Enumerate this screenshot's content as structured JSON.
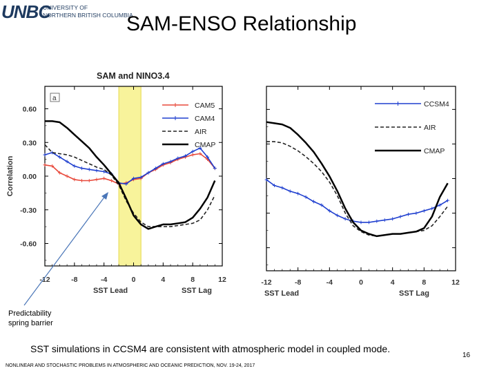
{
  "header": {
    "logo_mark": "UNBC",
    "logo_line1": "UNIVERSITY OF",
    "logo_line2": "NORTHERN BRITISH COLUMBIA",
    "slide_title": "SAM-ENSO Relationship"
  },
  "annotation": {
    "line1": "Predictability",
    "line2": "spring barrier"
  },
  "caption": "SST simulations in CCSM4 are consistent with atmospheric model in coupled mode.",
  "footer": "NONLINEAR AND STOCHASTIC PROBLEMS IN ATMOSPHERIC AND OCEANIC PREDICTION, NOV. 19-24, 2017",
  "page_number": "16",
  "chart_data": [
    {
      "type": "line",
      "title": "SAM and NINO3.4",
      "panel_label": "a",
      "ylabel": "Correlation",
      "xlabel_left": "SST Lead",
      "xlabel_right": "SST Lag",
      "xlim": [
        -12,
        12
      ],
      "ylim": [
        -0.8,
        0.8
      ],
      "xticks": [
        -12,
        -8,
        -4,
        0,
        4,
        8,
        12
      ],
      "xtick_labels": [
        "-12",
        "-8",
        "-4",
        "0",
        "4",
        "8",
        "12"
      ],
      "yticks": [
        0.6,
        0.3,
        0.0,
        -0.3,
        -0.6
      ],
      "ytick_labels": [
        "0.60",
        "0.30",
        "0.00",
        "-0.30",
        "-0.60"
      ],
      "highlight_band": [
        -2,
        1
      ],
      "legend_position": "top-right",
      "series": [
        {
          "name": "CAM5",
          "color": "#e8483a",
          "style": "solid",
          "marker": "plus",
          "x": [
            -12,
            -11,
            -10,
            -9,
            -8,
            -7,
            -6,
            -5,
            -4,
            -3,
            -2,
            -1,
            0,
            1,
            2,
            3,
            4,
            5,
            6,
            7,
            8,
            9,
            10,
            11
          ],
          "y": [
            0.1,
            0.09,
            0.03,
            0.0,
            -0.03,
            -0.04,
            -0.04,
            -0.03,
            -0.02,
            -0.04,
            -0.07,
            -0.06,
            -0.03,
            -0.02,
            0.03,
            0.06,
            0.1,
            0.12,
            0.15,
            0.17,
            0.19,
            0.2,
            0.15,
            0.07
          ]
        },
        {
          "name": "CAM4",
          "color": "#1f3fcf",
          "style": "solid",
          "marker": "plus",
          "x": [
            -12,
            -11,
            -10,
            -9,
            -8,
            -7,
            -6,
            -5,
            -4,
            -3,
            -2,
            -1,
            0,
            1,
            2,
            3,
            4,
            5,
            6,
            7,
            8,
            9,
            10,
            11
          ],
          "y": [
            0.19,
            0.21,
            0.17,
            0.13,
            0.09,
            0.07,
            0.06,
            0.05,
            0.04,
            0.02,
            -0.06,
            -0.07,
            -0.02,
            -0.01,
            0.03,
            0.07,
            0.11,
            0.13,
            0.16,
            0.18,
            0.22,
            0.25,
            0.17,
            0.07
          ]
        },
        {
          "name": "AIR",
          "color": "#222222",
          "style": "dashed",
          "marker": "none",
          "x": [
            -12,
            -11,
            -10,
            -9,
            -8,
            -7,
            -6,
            -5,
            -4,
            -3,
            -2,
            -1,
            0,
            1,
            2,
            3,
            4,
            5,
            6,
            7,
            8,
            9,
            10,
            11
          ],
          "y": [
            0.28,
            0.21,
            0.2,
            0.19,
            0.17,
            0.14,
            0.11,
            0.08,
            0.06,
            0.01,
            -0.08,
            -0.22,
            -0.33,
            -0.41,
            -0.45,
            -0.45,
            -0.45,
            -0.45,
            -0.44,
            -0.43,
            -0.42,
            -0.39,
            -0.3,
            -0.17
          ]
        },
        {
          "name": "CMAP",
          "color": "#000000",
          "style": "solid",
          "marker": "none",
          "width": 2.5,
          "x": [
            -12,
            -11,
            -10,
            -9,
            -8,
            -7,
            -6,
            -5,
            -4,
            -3,
            -2,
            -1,
            0,
            1,
            2,
            3,
            4,
            5,
            6,
            7,
            8,
            9,
            10,
            11
          ],
          "y": [
            0.49,
            0.49,
            0.48,
            0.43,
            0.37,
            0.31,
            0.25,
            0.17,
            0.1,
            0.02,
            -0.06,
            -0.2,
            -0.35,
            -0.43,
            -0.47,
            -0.45,
            -0.43,
            -0.43,
            -0.42,
            -0.41,
            -0.37,
            -0.29,
            -0.19,
            -0.04
          ]
        }
      ]
    },
    {
      "type": "line",
      "xlabel_left": "SST Lead",
      "xlabel_right": "SST Lag",
      "xlim": [
        -12,
        12
      ],
      "ylim": [
        -0.8,
        0.8
      ],
      "xticks": [
        -12,
        -8,
        -4,
        0,
        4,
        8,
        12
      ],
      "xtick_labels": [
        "-12",
        "-8",
        "-4",
        "0",
        "4",
        "8",
        "12"
      ],
      "legend_position": "top-right",
      "series": [
        {
          "name": "CCSM4",
          "color": "#1f3fcf",
          "style": "solid",
          "marker": "plus",
          "x": [
            -12,
            -11,
            -10,
            -9,
            -8,
            -7,
            -6,
            -5,
            -4,
            -3,
            -2,
            -1,
            0,
            1,
            2,
            3,
            4,
            5,
            6,
            7,
            8,
            9,
            10,
            11
          ],
          "y": [
            -0.01,
            -0.06,
            -0.08,
            -0.11,
            -0.13,
            -0.16,
            -0.2,
            -0.23,
            -0.28,
            -0.32,
            -0.35,
            -0.37,
            -0.38,
            -0.38,
            -0.37,
            -0.36,
            -0.35,
            -0.33,
            -0.31,
            -0.3,
            -0.28,
            -0.26,
            -0.23,
            -0.19
          ]
        },
        {
          "name": "AIR",
          "color": "#222222",
          "style": "dashed",
          "marker": "none",
          "x": [
            -12,
            -11,
            -10,
            -9,
            -8,
            -7,
            -6,
            -5,
            -4,
            -3,
            -2,
            -1,
            0,
            1,
            2,
            3,
            4,
            5,
            6,
            7,
            8,
            9,
            10,
            11
          ],
          "y": [
            0.32,
            0.32,
            0.31,
            0.28,
            0.24,
            0.19,
            0.13,
            0.06,
            -0.03,
            -0.15,
            -0.3,
            -0.41,
            -0.46,
            -0.49,
            -0.5,
            -0.49,
            -0.48,
            -0.48,
            -0.47,
            -0.46,
            -0.45,
            -0.41,
            -0.33,
            -0.24
          ]
        },
        {
          "name": "CMAP",
          "color": "#000000",
          "style": "solid",
          "marker": "none",
          "width": 2.5,
          "x": [
            -12,
            -11,
            -10,
            -9,
            -8,
            -7,
            -6,
            -5,
            -4,
            -3,
            -2,
            -1,
            0,
            1,
            2,
            3,
            4,
            5,
            6,
            7,
            8,
            9,
            10,
            11
          ],
          "y": [
            0.49,
            0.48,
            0.47,
            0.44,
            0.38,
            0.31,
            0.23,
            0.13,
            0.02,
            -0.11,
            -0.26,
            -0.38,
            -0.45,
            -0.48,
            -0.5,
            -0.49,
            -0.48,
            -0.48,
            -0.47,
            -0.46,
            -0.43,
            -0.33,
            -0.16,
            -0.04
          ]
        }
      ]
    }
  ]
}
